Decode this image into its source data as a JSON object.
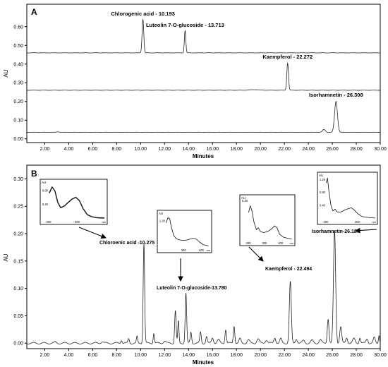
{
  "chart_data": [
    {
      "type": "line",
      "panel_label": "A",
      "xlabel": "Minutes",
      "ylabel": "AU",
      "xlim": [
        0.5,
        30.0
      ],
      "ylim": [
        -0.02,
        0.72
      ],
      "x_ticks": [
        2.0,
        4.0,
        6.0,
        8.0,
        10.0,
        12.0,
        14.0,
        16.0,
        18.0,
        20.0,
        22.0,
        24.0,
        26.0,
        28.0,
        30.0
      ],
      "x_tick_labels": [
        "2.00",
        "4.00",
        "6.00",
        "8.00",
        "10.00",
        "12.00",
        "14.00",
        "16.00",
        "18.00",
        "20.00",
        "22.00",
        "24.00",
        "26.00",
        "28.00",
        "30.00"
      ],
      "y_ticks": [
        0.0,
        0.1,
        0.2,
        0.3,
        0.4,
        0.5,
        0.6
      ],
      "y_tick_labels": [
        "0.00",
        "0.10",
        "0.20",
        "0.30",
        "0.40",
        "0.50",
        "0.60"
      ],
      "series": [
        {
          "baseline": 0.46,
          "peaks": [
            [
              10.193,
              0.18,
              0.07
            ],
            [
              13.713,
              0.12,
              0.06
            ]
          ]
        },
        {
          "baseline": 0.26,
          "peaks": [
            [
              22.272,
              0.145,
              0.07
            ],
            [
              19.5,
              0.003,
              0.4
            ]
          ]
        },
        {
          "baseline": 0.035,
          "peaks": [
            [
              26.308,
              0.165,
              0.12
            ],
            [
              25.3,
              0.015,
              0.12
            ],
            [
              3.1,
              0.003,
              0.1
            ]
          ]
        }
      ],
      "annotations": [
        {
          "text": "Chlorogenic acid - 10.193",
          "x": 10.193,
          "y": 0.66
        },
        {
          "text": "Luteolin 7-O-glucoside - 13.713",
          "x": 13.713,
          "y": 0.6
        },
        {
          "text": "Kaempferol - 22.272",
          "x": 22.272,
          "y": 0.43
        },
        {
          "text": "Isorhamnetin - 26.308",
          "x": 26.308,
          "y": 0.225
        }
      ]
    },
    {
      "type": "line",
      "panel_label": "B",
      "xlabel": "Minutes",
      "ylabel": "AU",
      "xlim": [
        0.5,
        30.0
      ],
      "ylim": [
        -0.01,
        0.325
      ],
      "x_ticks": [
        2.0,
        4.0,
        6.0,
        8.0,
        10.0,
        12.0,
        14.0,
        16.0,
        18.0,
        20.0,
        22.0,
        24.0,
        26.0,
        28.0,
        30.0
      ],
      "x_tick_labels": [
        "2.00",
        "4.00",
        "6.00",
        "8.00",
        "10.00",
        "12.00",
        "14.00",
        "16.00",
        "18.00",
        "20.00",
        "22.00",
        "24.00",
        "26.00",
        "28.00",
        "30.00"
      ],
      "y_ticks": [
        0.0,
        0.05,
        0.1,
        0.15,
        0.2,
        0.25,
        0.3
      ],
      "y_tick_labels": [
        "0.00",
        "0.05",
        "0.10",
        "0.15",
        "0.20",
        "0.25",
        "0.30"
      ],
      "series": [
        {
          "baseline": 0.0,
          "peaks": [
            [
              2.9,
              0.002,
              0.08
            ],
            [
              6.8,
              0.003,
              0.1
            ],
            [
              8.4,
              0.006,
              0.06
            ],
            [
              9.0,
              0.008,
              0.06
            ],
            [
              9.7,
              0.012,
              0.05
            ],
            [
              10.275,
              0.183,
              0.06
            ],
            [
              11.1,
              0.018,
              0.05
            ],
            [
              12.0,
              0.004,
              0.1
            ],
            [
              12.9,
              0.06,
              0.06
            ],
            [
              13.15,
              0.04,
              0.05
            ],
            [
              13.78,
              0.092,
              0.06
            ],
            [
              14.2,
              0.02,
              0.06
            ],
            [
              15.0,
              0.02,
              0.06
            ],
            [
              15.5,
              0.012,
              0.06
            ],
            [
              16.0,
              0.01,
              0.08
            ],
            [
              16.5,
              0.006,
              0.1
            ],
            [
              17.1,
              0.025,
              0.06
            ],
            [
              17.8,
              0.032,
              0.06
            ],
            [
              18.3,
              0.008,
              0.08
            ],
            [
              19.0,
              0.006,
              0.1
            ],
            [
              19.8,
              0.008,
              0.1
            ],
            [
              20.5,
              0.006,
              0.1
            ],
            [
              21.2,
              0.01,
              0.08
            ],
            [
              21.7,
              0.008,
              0.08
            ],
            [
              22.494,
              0.112,
              0.08
            ],
            [
              23.0,
              0.008,
              0.08
            ],
            [
              23.6,
              0.005,
              0.1
            ],
            [
              24.3,
              0.005,
              0.1
            ],
            [
              25.0,
              0.006,
              0.1
            ],
            [
              25.65,
              0.045,
              0.07
            ],
            [
              26.187,
              0.205,
              0.09
            ],
            [
              26.7,
              0.03,
              0.08
            ],
            [
              27.2,
              0.01,
              0.08
            ],
            [
              27.8,
              0.008,
              0.1
            ],
            [
              28.3,
              0.01,
              0.06
            ],
            [
              28.9,
              0.008,
              0.08
            ],
            [
              29.5,
              0.01,
              0.08
            ],
            [
              29.9,
              0.015,
              0.05
            ]
          ]
        }
      ],
      "annotations": [
        {
          "text": "Chloroenic acid -10.275"
        },
        {
          "text": "Luteolin 7-O-glucoside-13.780"
        },
        {
          "text": "Kaempferol - 22.494"
        },
        {
          "text": "Isorhamnetin-26.187"
        }
      ],
      "insets": [
        {
          "name": "inset-chlorogenic-acid",
          "ylabel": "AU",
          "x_range": [
            200,
            400
          ],
          "x_ticks": [
            200,
            300
          ],
          "x_tick_labels": [
            "200",
            "300"
          ],
          "y_range": [
            0.0,
            1.0
          ],
          "y_ticks": [
            0.4,
            0.8
          ],
          "y_tick_labels": [
            "0.40",
            "0.80"
          ],
          "curve": [
            [
              202,
              0.72
            ],
            [
              212,
              0.9
            ],
            [
              222,
              0.78
            ],
            [
              232,
              0.45
            ],
            [
              242,
              0.3
            ],
            [
              255,
              0.35
            ],
            [
              268,
              0.45
            ],
            [
              282,
              0.55
            ],
            [
              295,
              0.6
            ],
            [
              308,
              0.5
            ],
            [
              320,
              0.28
            ],
            [
              335,
              0.1
            ],
            [
              350,
              0.04
            ],
            [
              370,
              0.01
            ],
            [
              395,
              0.0
            ]
          ]
        },
        {
          "name": "inset-luteolin",
          "ylabel": "AU",
          "x_range": [
            200,
            450
          ],
          "x_ticks": [
            300,
            400
          ],
          "x_tick_labels": [
            "300",
            "400"
          ],
          "y_range": [
            0.0,
            1.5
          ],
          "y_ticks": [
            1.2
          ],
          "y_tick_labels": [
            "1.20"
          ],
          "curve": [
            [
              202,
              1.1
            ],
            [
              212,
              1.35
            ],
            [
              222,
              1.3
            ],
            [
              232,
              0.9
            ],
            [
              245,
              0.5
            ],
            [
              260,
              0.35
            ],
            [
              280,
              0.3
            ],
            [
              300,
              0.28
            ],
            [
              320,
              0.3
            ],
            [
              340,
              0.35
            ],
            [
              355,
              0.38
            ],
            [
              370,
              0.35
            ],
            [
              390,
              0.2
            ],
            [
              410,
              0.08
            ],
            [
              440,
              0.02
            ]
          ]
        },
        {
          "name": "inset-kaempferol",
          "ylabel": "AU",
          "x_range": [
            200,
            480
          ],
          "x_ticks": [
            200,
            300,
            400
          ],
          "x_tick_labels": [
            "200",
            "300",
            "400"
          ],
          "y_range": [
            0.0,
            0.42
          ],
          "y_ticks": [
            0.4
          ],
          "y_tick_labels": [
            "0.40"
          ],
          "curve": [
            [
              202,
              0.28
            ],
            [
              212,
              0.35
            ],
            [
              222,
              0.3
            ],
            [
              235,
              0.18
            ],
            [
              250,
              0.1
            ],
            [
              262,
              0.12
            ],
            [
              275,
              0.08
            ],
            [
              295,
              0.07
            ],
            [
              320,
              0.08
            ],
            [
              345,
              0.11
            ],
            [
              362,
              0.14
            ],
            [
              378,
              0.12
            ],
            [
              395,
              0.05
            ],
            [
              420,
              0.02
            ],
            [
              470,
              0.0
            ]
          ]
        },
        {
          "name": "inset-isorhamnetin",
          "ylabel": "AU",
          "x_range": [
            200,
            520
          ],
          "x_ticks": [
            200,
            400
          ],
          "x_tick_labels": [
            "200",
            "400"
          ],
          "y_range": [
            0.0,
            1.3
          ],
          "y_ticks": [
            0.4,
            0.8,
            1.2
          ],
          "y_tick_labels": [
            "0.40",
            "0.80",
            "1.20"
          ],
          "curve": [
            [
              202,
              1.1
            ],
            [
              210,
              1.25
            ],
            [
              220,
              0.8
            ],
            [
              232,
              0.4
            ],
            [
              245,
              0.22
            ],
            [
              258,
              0.28
            ],
            [
              270,
              0.2
            ],
            [
              290,
              0.18
            ],
            [
              320,
              0.25
            ],
            [
              345,
              0.3
            ],
            [
              362,
              0.32
            ],
            [
              380,
              0.26
            ],
            [
              400,
              0.15
            ],
            [
              430,
              0.05
            ],
            [
              470,
              0.02
            ],
            [
              515,
              0.0
            ]
          ]
        }
      ],
      "inset_unit_label": "nm"
    }
  ]
}
